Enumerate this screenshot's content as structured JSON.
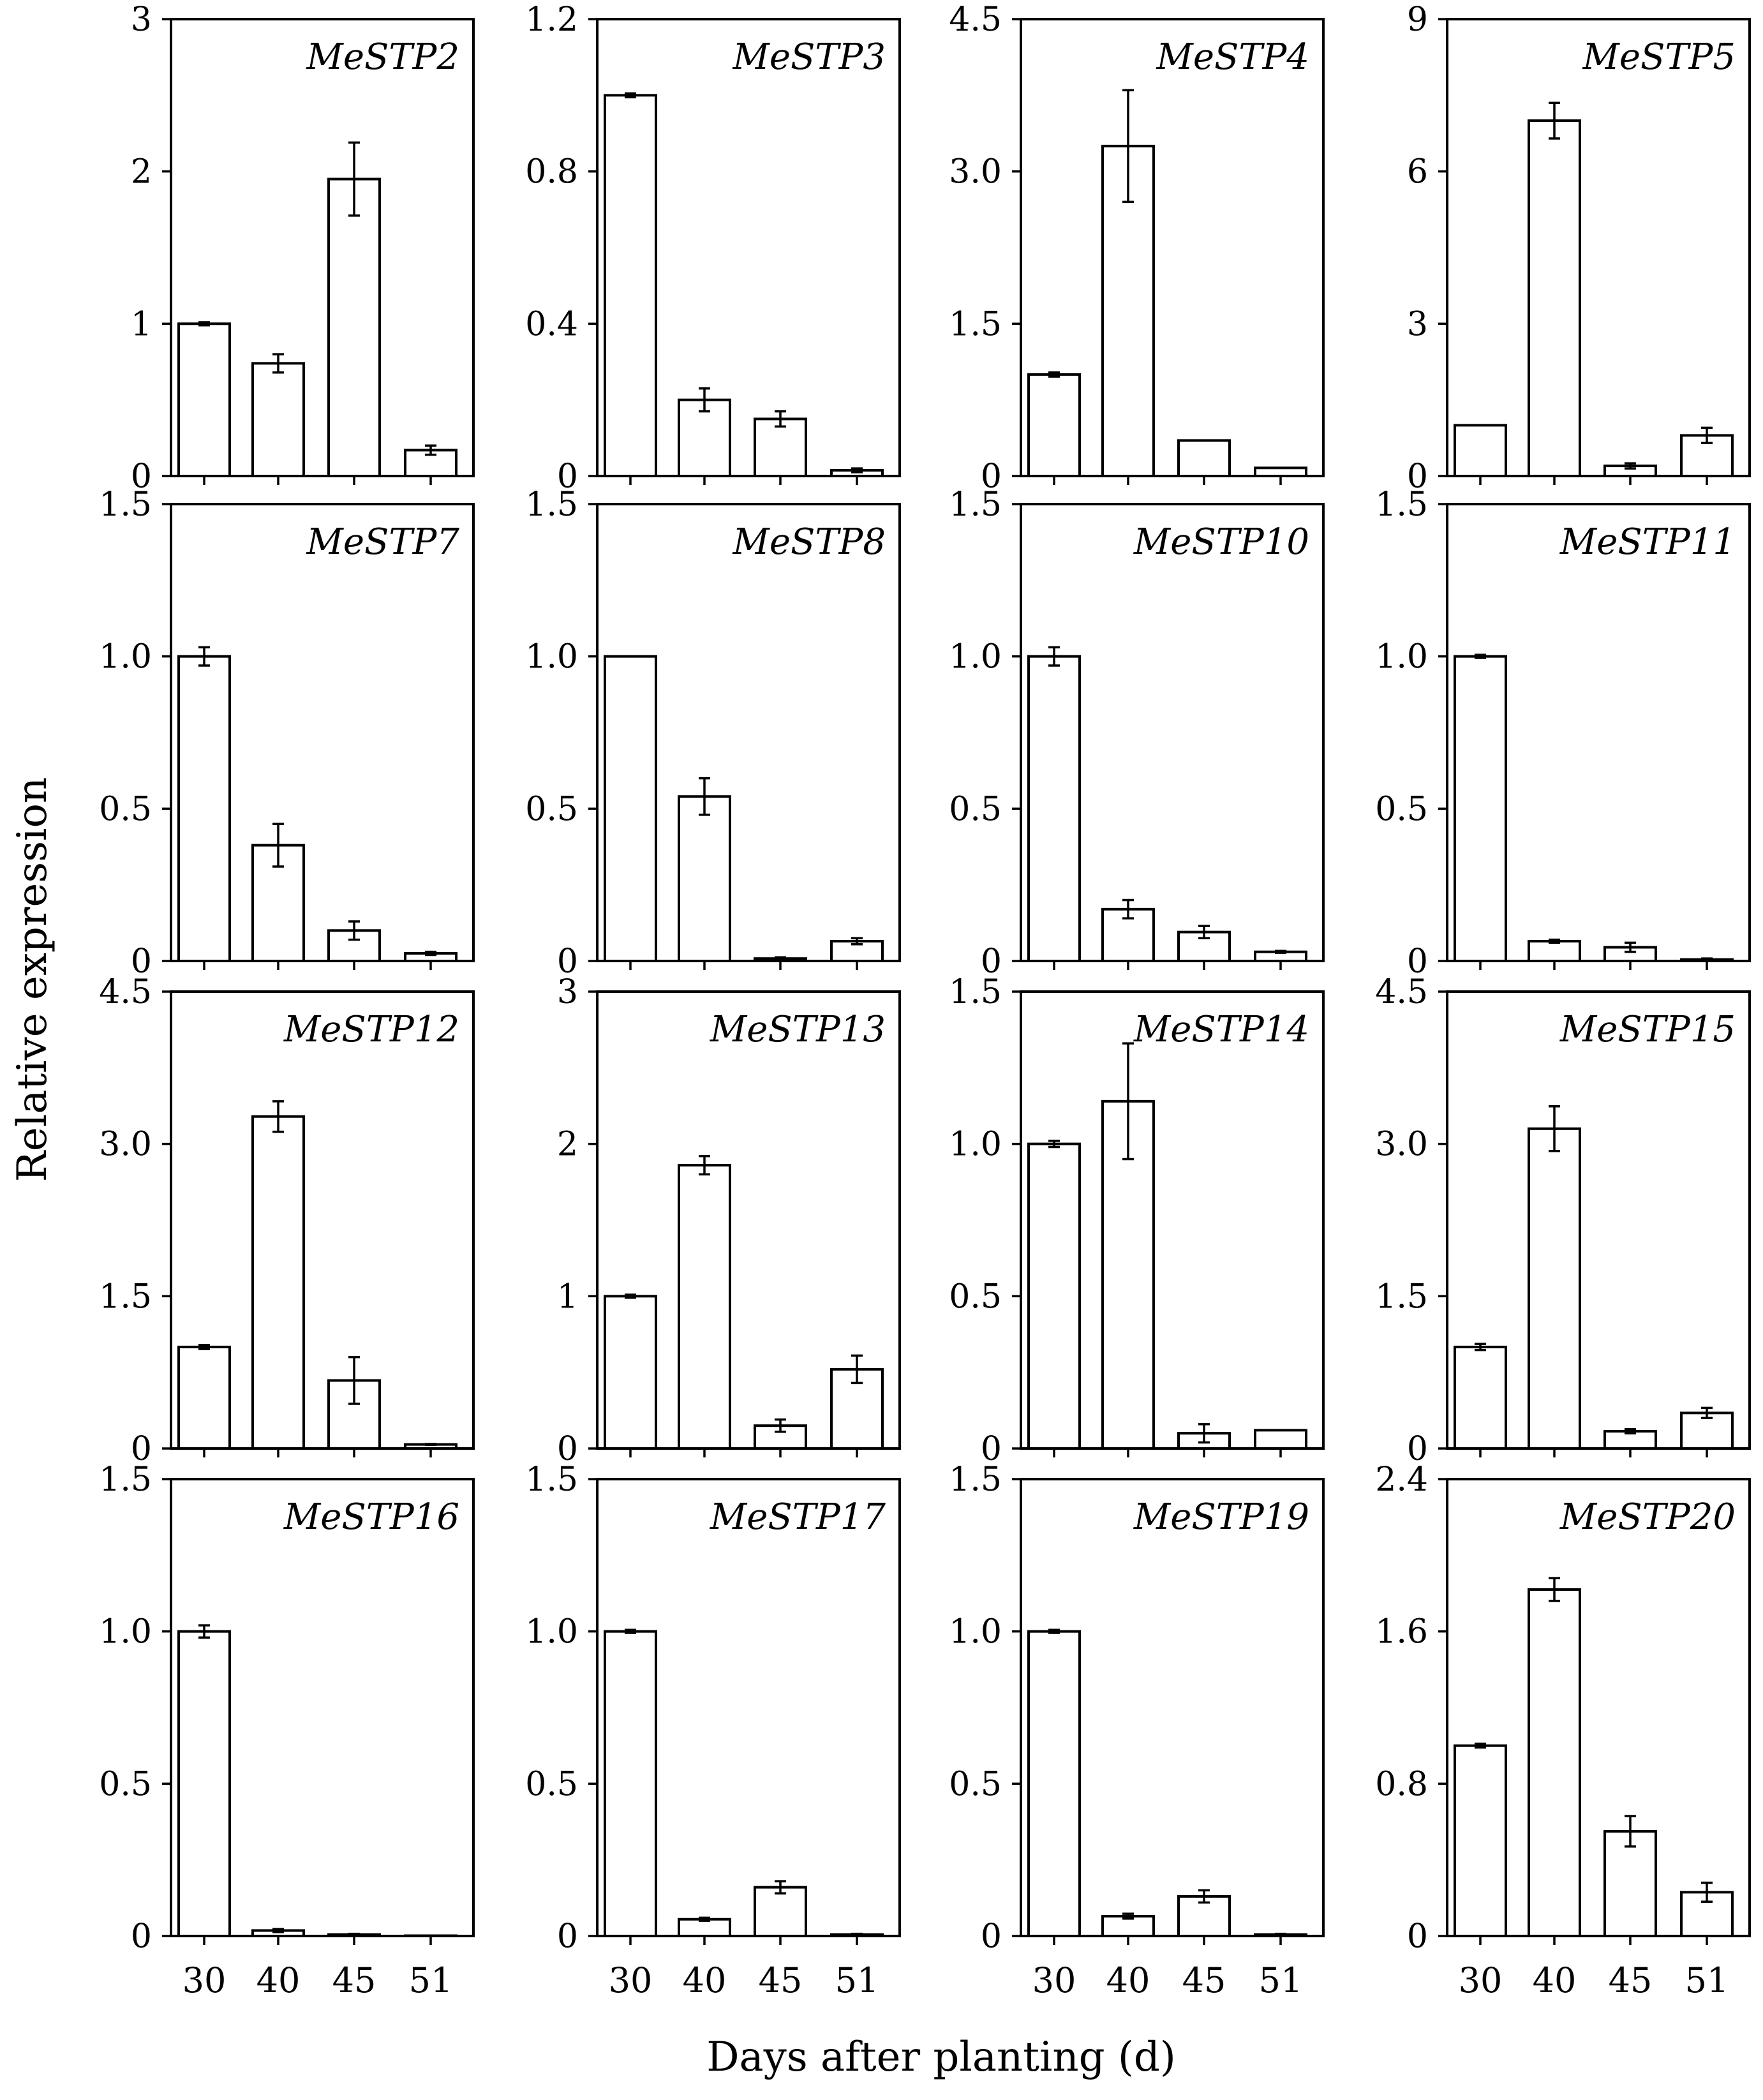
{
  "chart_data": {
    "type": "bar",
    "categories": [
      "30",
      "40",
      "45",
      "51"
    ],
    "xlabel": "Days after planting (d)",
    "ylabel": "Relative expression",
    "panels": [
      {
        "gene": "MeSTP2",
        "ylim": [
          0,
          3
        ],
        "yticks": [
          0,
          1,
          2,
          3
        ],
        "ytick_labels": [
          "0",
          "1",
          "2",
          "3"
        ],
        "values": [
          1.0,
          0.74,
          1.95,
          0.17
        ],
        "errors": [
          0.01,
          0.06,
          0.24,
          0.03
        ]
      },
      {
        "gene": "MeSTP3",
        "ylim": [
          0,
          1.2
        ],
        "yticks": [
          0,
          0.4,
          0.8,
          1.2
        ],
        "ytick_labels": [
          "0",
          "0.4",
          "0.8",
          "1.2"
        ],
        "values": [
          1.0,
          0.2,
          0.15,
          0.015
        ],
        "errors": [
          0.005,
          0.03,
          0.02,
          0.005
        ]
      },
      {
        "gene": "MeSTP4",
        "ylim": [
          0,
          4.5
        ],
        "yticks": [
          0,
          1.5,
          3.0,
          4.5
        ],
        "ytick_labels": [
          "0",
          "1.5",
          "3.0",
          "4.5"
        ],
        "values": [
          1.0,
          3.25,
          0.35,
          0.08
        ],
        "errors": [
          0.02,
          0.55,
          0.0,
          0.0
        ]
      },
      {
        "gene": "MeSTP5",
        "ylim": [
          0,
          9
        ],
        "yticks": [
          0,
          3,
          6,
          9
        ],
        "ytick_labels": [
          "0",
          "3",
          "6",
          "9"
        ],
        "values": [
          1.0,
          7.0,
          0.2,
          0.8
        ],
        "errors": [
          0.0,
          0.35,
          0.05,
          0.15
        ]
      },
      {
        "gene": "MeSTP7",
        "ylim": [
          0,
          1.5
        ],
        "yticks": [
          0,
          0.5,
          1.0,
          1.5
        ],
        "ytick_labels": [
          "0",
          "0.5",
          "1.0",
          "1.5"
        ],
        "values": [
          1.0,
          0.38,
          0.1,
          0.025
        ],
        "errors": [
          0.03,
          0.07,
          0.03,
          0.005
        ]
      },
      {
        "gene": "MeSTP8",
        "ylim": [
          0,
          1.5
        ],
        "yticks": [
          0,
          0.5,
          1.0,
          1.5
        ],
        "ytick_labels": [
          "0",
          "0.5",
          "1.0",
          "1.5"
        ],
        "values": [
          1.0,
          0.54,
          0.008,
          0.065
        ],
        "errors": [
          0.0,
          0.06,
          0.004,
          0.01
        ]
      },
      {
        "gene": "MeSTP10",
        "ylim": [
          0,
          1.5
        ],
        "yticks": [
          0,
          0.5,
          1.0,
          1.5
        ],
        "ytick_labels": [
          "0",
          "0.5",
          "1.0",
          "1.5"
        ],
        "values": [
          1.0,
          0.17,
          0.095,
          0.03
        ],
        "errors": [
          0.03,
          0.03,
          0.02,
          0.003
        ]
      },
      {
        "gene": "MeSTP11",
        "ylim": [
          0,
          1.5
        ],
        "yticks": [
          0,
          0.5,
          1.0,
          1.5
        ],
        "ytick_labels": [
          "0",
          "0.5",
          "1.0",
          "1.5"
        ],
        "values": [
          1.0,
          0.065,
          0.045,
          0.005
        ],
        "errors": [
          0.005,
          0.005,
          0.015,
          0.003
        ]
      },
      {
        "gene": "MeSTP12",
        "ylim": [
          0,
          4.5
        ],
        "yticks": [
          0,
          1.5,
          3.0,
          4.5
        ],
        "ytick_labels": [
          "0",
          "1.5",
          "3.0",
          "4.5"
        ],
        "values": [
          1.0,
          3.27,
          0.67,
          0.04
        ],
        "errors": [
          0.02,
          0.15,
          0.23,
          0.005
        ]
      },
      {
        "gene": "MeSTP13",
        "ylim": [
          0,
          3
        ],
        "yticks": [
          0,
          1,
          2,
          3
        ],
        "ytick_labels": [
          "0",
          "1",
          "2",
          "3"
        ],
        "values": [
          1.0,
          1.86,
          0.15,
          0.52
        ],
        "errors": [
          0.01,
          0.06,
          0.04,
          0.09
        ]
      },
      {
        "gene": "MeSTP14",
        "ylim": [
          0,
          1.5
        ],
        "yticks": [
          0,
          0.5,
          1.0,
          1.5
        ],
        "ytick_labels": [
          "0",
          "0.5",
          "1.0",
          "1.5"
        ],
        "values": [
          1.0,
          1.14,
          0.05,
          0.06
        ],
        "errors": [
          0.01,
          0.19,
          0.03,
          0.0
        ]
      },
      {
        "gene": "MeSTP15",
        "ylim": [
          0,
          4.5
        ],
        "yticks": [
          0,
          1.5,
          3.0,
          4.5
        ],
        "ytick_labels": [
          "0",
          "1.5",
          "3.0",
          "4.5"
        ],
        "values": [
          1.0,
          3.15,
          0.17,
          0.35
        ],
        "errors": [
          0.03,
          0.22,
          0.02,
          0.05
        ]
      },
      {
        "gene": "MeSTP16",
        "ylim": [
          0,
          1.5
        ],
        "yticks": [
          0,
          0.5,
          1.0,
          1.5
        ],
        "ytick_labels": [
          "0",
          "0.5",
          "1.0",
          "1.5"
        ],
        "values": [
          1.0,
          0.018,
          0.005,
          0.0
        ],
        "errors": [
          0.02,
          0.005,
          0.002,
          0.0
        ]
      },
      {
        "gene": "MeSTP17",
        "ylim": [
          0,
          1.5
        ],
        "yticks": [
          0,
          0.5,
          1.0,
          1.5
        ],
        "ytick_labels": [
          "0",
          "0.5",
          "1.0",
          "1.5"
        ],
        "values": [
          1.0,
          0.055,
          0.16,
          0.005
        ],
        "errors": [
          0.005,
          0.005,
          0.02,
          0.002
        ]
      },
      {
        "gene": "MeSTP19",
        "ylim": [
          0,
          1.5
        ],
        "yticks": [
          0,
          0.5,
          1.0,
          1.5
        ],
        "ytick_labels": [
          "0",
          "0.5",
          "1.0",
          "1.5"
        ],
        "values": [
          1.0,
          0.065,
          0.13,
          0.005
        ],
        "errors": [
          0.005,
          0.008,
          0.02,
          0.002
        ]
      },
      {
        "gene": "MeSTP20",
        "ylim": [
          0,
          2.4
        ],
        "yticks": [
          0,
          0.8,
          1.6,
          2.4
        ],
        "ytick_labels": [
          "0",
          "0.8",
          "1.6",
          "2.4"
        ],
        "values": [
          1.0,
          1.82,
          0.55,
          0.23
        ],
        "errors": [
          0.01,
          0.06,
          0.08,
          0.05
        ]
      }
    ]
  }
}
